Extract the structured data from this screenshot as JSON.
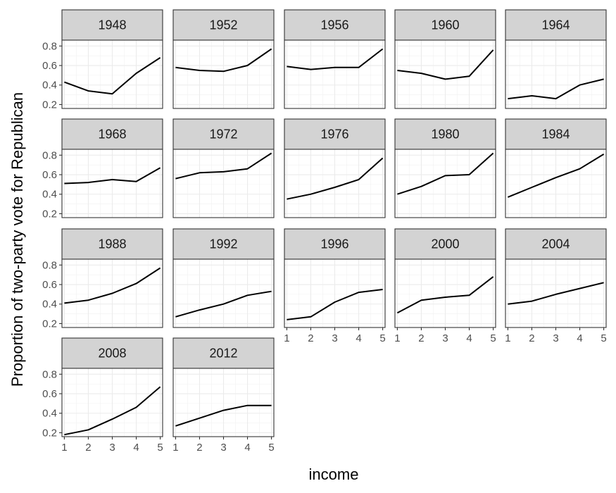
{
  "chart_data": {
    "type": "line",
    "facet_by": "year",
    "xlabel": "income",
    "ylabel": "Proportion of two-party vote for Republican",
    "x": [
      1,
      2,
      3,
      4,
      5
    ],
    "x_ticks": [
      1,
      2,
      3,
      4,
      5
    ],
    "y_ticks": [
      0.2,
      0.4,
      0.6,
      0.8
    ],
    "xlim": [
      0.9,
      5.1
    ],
    "ylim": [
      0.16,
      0.86
    ],
    "grid": true,
    "panels": [
      {
        "title": "1948",
        "values": [
          0.43,
          0.34,
          0.31,
          0.52,
          0.68
        ]
      },
      {
        "title": "1952",
        "values": [
          0.58,
          0.55,
          0.54,
          0.6,
          0.77
        ]
      },
      {
        "title": "1956",
        "values": [
          0.59,
          0.56,
          0.58,
          0.58,
          0.77
        ]
      },
      {
        "title": "1960",
        "values": [
          0.55,
          0.52,
          0.46,
          0.49,
          0.76
        ]
      },
      {
        "title": "1964",
        "values": [
          0.26,
          0.29,
          0.26,
          0.4,
          0.46
        ]
      },
      {
        "title": "1968",
        "values": [
          0.51,
          0.52,
          0.55,
          0.53,
          0.67
        ]
      },
      {
        "title": "1972",
        "values": [
          0.56,
          0.62,
          0.63,
          0.66,
          0.82
        ]
      },
      {
        "title": "1976",
        "values": [
          0.35,
          0.4,
          0.47,
          0.55,
          0.77
        ]
      },
      {
        "title": "1980",
        "values": [
          0.4,
          0.48,
          0.59,
          0.6,
          0.82
        ]
      },
      {
        "title": "1984",
        "values": [
          0.37,
          0.47,
          0.57,
          0.66,
          0.81
        ]
      },
      {
        "title": "1988",
        "values": [
          0.41,
          0.44,
          0.51,
          0.61,
          0.77
        ]
      },
      {
        "title": "1992",
        "values": [
          0.27,
          0.34,
          0.4,
          0.49,
          0.53
        ]
      },
      {
        "title": "1996",
        "values": [
          0.24,
          0.27,
          0.42,
          0.52,
          0.55
        ]
      },
      {
        "title": "2000",
        "values": [
          0.31,
          0.44,
          0.47,
          0.49,
          0.68
        ]
      },
      {
        "title": "2004",
        "values": [
          0.4,
          0.43,
          0.5,
          0.56,
          0.62
        ]
      },
      {
        "title": "2008",
        "values": [
          0.18,
          0.23,
          0.34,
          0.46,
          0.67
        ]
      },
      {
        "title": "2012",
        "values": [
          0.27,
          0.35,
          0.43,
          0.48,
          0.48
        ]
      }
    ]
  }
}
